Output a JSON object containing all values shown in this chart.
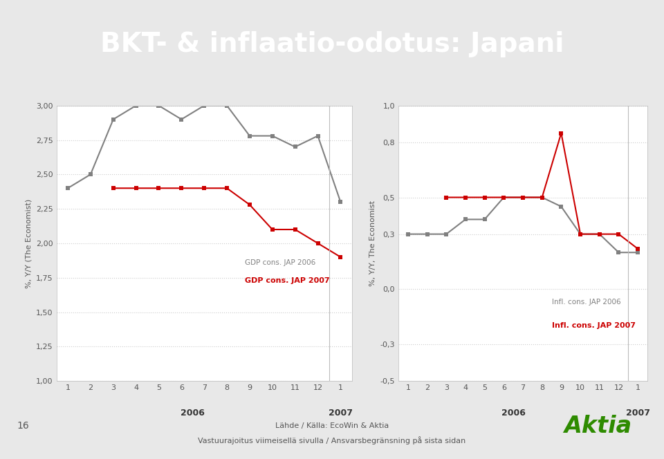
{
  "title": "BKT- & inflaatio-odotus: Japani",
  "title_color": "#ffffff",
  "title_bg_color": "#2e8b00",
  "body_bg_color": "#e8e8e8",
  "plot_bg_color": "#ffffff",
  "footer_line1": "Lähde / Källa: EcoWin & Aktia",
  "footer_line2": "Vastuurajoitus viimeisellä sivulla / Ansvarsbegränsning på sista sidan",
  "page_number": "16",
  "footer_bar_color": "#2e8b00",
  "aktia_color": "#2e8b00",
  "left_chart": {
    "ylabel": "%, Y/Y (The Economist)",
    "ylim": [
      1.0,
      3.0
    ],
    "yticks": [
      1.0,
      1.25,
      1.5,
      1.75,
      2.0,
      2.25,
      2.5,
      2.75,
      3.0
    ],
    "xlabel_2006": "2006",
    "xlabel_2007": "2007",
    "gdp_2006": [
      2.4,
      2.5,
      2.9,
      3.0,
      3.0,
      2.9,
      3.0,
      3.0,
      2.78,
      2.78,
      2.7,
      2.78,
      2.3
    ],
    "gdp_2007": [
      null,
      null,
      2.4,
      2.4,
      2.4,
      2.4,
      2.4,
      2.4,
      2.28,
      2.1,
      2.1,
      2.0,
      1.9
    ],
    "legend_2006_label": "GDP cons. JAP 2006",
    "legend_2007_label": "GDP cons. JAP 2007",
    "color_2006": "#808080",
    "color_2007": "#cc0000"
  },
  "right_chart": {
    "ylabel": "%, Y/Y, The Economist",
    "ylim": [
      -0.5,
      1.0
    ],
    "yticks": [
      -0.5,
      -0.3,
      0.0,
      0.3,
      0.5,
      0.8,
      1.0
    ],
    "xlabel_2006": "2006",
    "xlabel_2007": "2007",
    "infl_2006": [
      0.3,
      0.3,
      0.3,
      0.38,
      0.38,
      0.5,
      0.5,
      0.5,
      0.45,
      0.3,
      0.3,
      0.2,
      0.2
    ],
    "infl_2007": [
      null,
      null,
      0.5,
      0.5,
      0.5,
      0.5,
      0.5,
      0.5,
      0.85,
      0.3,
      0.3,
      0.3,
      0.22
    ],
    "legend_2006_label": "Infl. cons. JAP 2006",
    "legend_2007_label": "Infl. cons. JAP 2007",
    "color_2006": "#808080",
    "color_2007": "#cc0000"
  },
  "grid_color": "#cccccc"
}
